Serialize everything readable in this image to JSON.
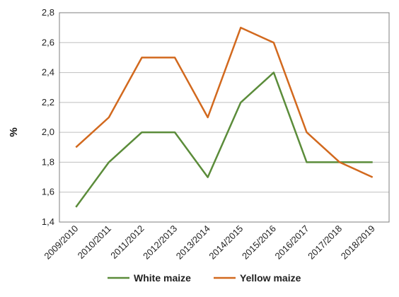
{
  "chart_data": {
    "type": "line",
    "title": "",
    "xlabel": "",
    "ylabel": "%",
    "categories": [
      "2009/2010",
      "2010/2011",
      "2011/2012",
      "2012/2013",
      "2013/2014",
      "2014/2015",
      "2015/2016",
      "2016/2017",
      "2017/2018",
      "2018/2019"
    ],
    "ylim": [
      1.4,
      2.8
    ],
    "yticks": [
      "1,4",
      "1,6",
      "1,8",
      "2,0",
      "2,2",
      "2,4",
      "2,6",
      "2,8"
    ],
    "ytick_values": [
      1.4,
      1.6,
      1.8,
      2.0,
      2.2,
      2.4,
      2.6,
      2.8
    ],
    "grid": true,
    "legend_position": "bottom",
    "series": [
      {
        "name": "White maize",
        "color": "#5b8c3a",
        "values": [
          1.5,
          1.8,
          2.0,
          2.0,
          1.7,
          2.2,
          2.4,
          1.8,
          1.8,
          1.8
        ]
      },
      {
        "name": "Yellow maize",
        "color": "#d2691e",
        "values": [
          1.9,
          2.1,
          2.5,
          2.5,
          2.1,
          2.7,
          2.6,
          2.0,
          1.8,
          1.7
        ]
      }
    ]
  }
}
